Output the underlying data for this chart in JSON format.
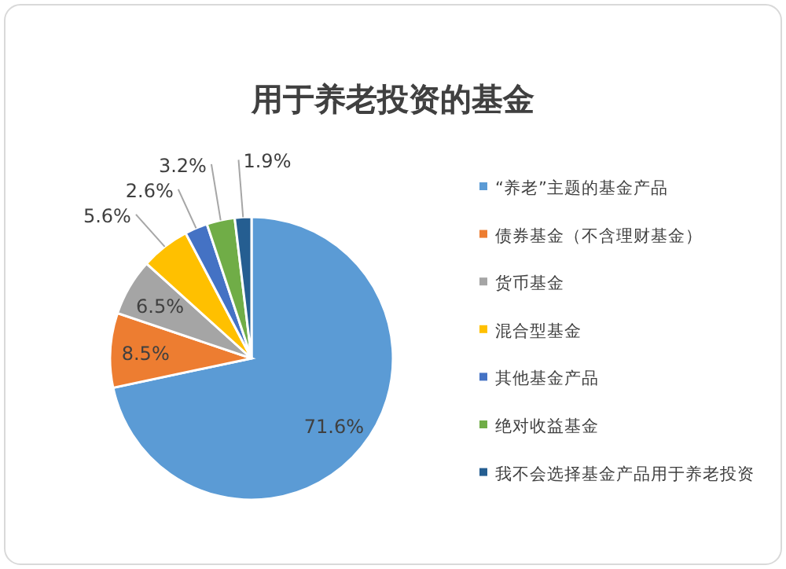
{
  "chart_data": {
    "type": "pie",
    "title": "用于养老投资的基金",
    "categories": [
      "“养老”主题的基金产品",
      "债券基金（不含理财基金）",
      "货币基金",
      "混合型基金",
      "其他基金产品",
      "绝对收益基金",
      "我不会选择基金产品用于养老投资"
    ],
    "values": [
      71.6,
      8.5,
      6.5,
      5.6,
      2.6,
      3.2,
      1.9
    ],
    "value_labels": [
      "71.6%",
      "8.5%",
      "6.5%",
      "5.6%",
      "2.6%",
      "3.2%",
      "1.9%"
    ],
    "colors": [
      "#5b9bd5",
      "#ed7d31",
      "#a5a5a5",
      "#ffc000",
      "#4472c4",
      "#70ad47",
      "#255e91"
    ],
    "legend": "right"
  }
}
